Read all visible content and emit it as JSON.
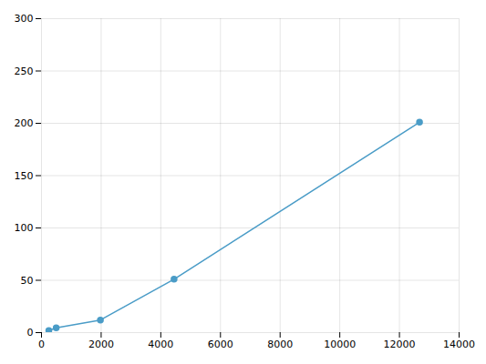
{
  "chart_data": {
    "type": "line",
    "x": [
      246,
      493,
      1975,
      4444,
      12673
    ],
    "values": [
      2.0,
      4.5,
      12.0,
      51.0,
      201.0
    ],
    "color": "#4a9cc7",
    "marker": "circle",
    "xlim": [
      0,
      14000
    ],
    "ylim": [
      0,
      300
    ],
    "xticks": [
      0,
      2000,
      4000,
      6000,
      8000,
      10000,
      12000,
      14000
    ],
    "yticks": [
      0,
      50,
      100,
      150,
      200,
      250,
      300
    ],
    "grid": true
  }
}
